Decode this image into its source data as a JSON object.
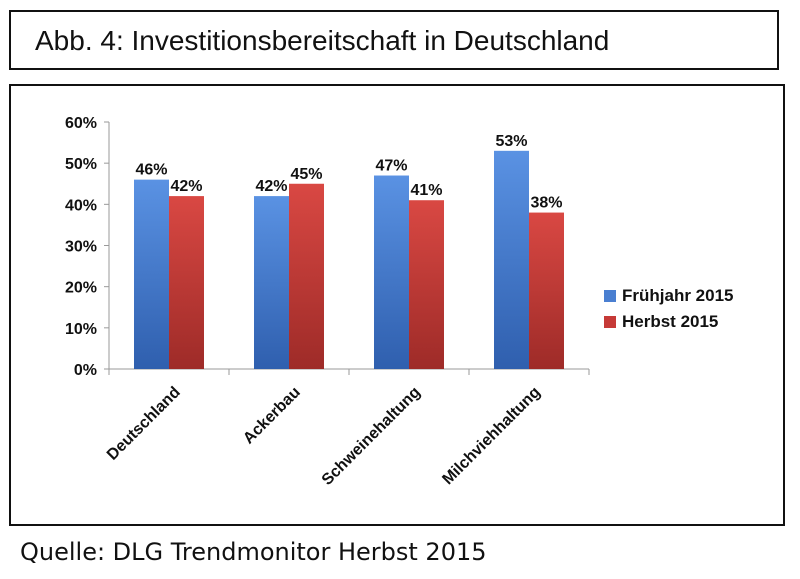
{
  "figure": {
    "title": "Abb. 4: Investitionsbereitschaft in Deutschland",
    "source": "Quelle: DLG Trendmonitor Herbst 2015"
  },
  "colors": {
    "series_blue": "#4a7fd1",
    "series_red": "#c63a37",
    "axis": "#9a9a9a",
    "text": "#111111"
  },
  "chart_data": {
    "type": "bar",
    "categories": [
      "Deutschland",
      "Ackerbau",
      "Schweinehaltung",
      "Milchviehhaltung"
    ],
    "series": [
      {
        "name": "Frühjahr 2015",
        "values": [
          46,
          42,
          47,
          53
        ],
        "labels": [
          "46%",
          "42%",
          "47%",
          "53%"
        ],
        "color": "#4a7fd1"
      },
      {
        "name": "Herbst 2015",
        "values": [
          42,
          45,
          41,
          38
        ],
        "labels": [
          "42%",
          "45%",
          "41%",
          "38%"
        ],
        "color": "#c63a37"
      }
    ],
    "ylim": [
      0,
      60
    ],
    "yticks": [
      "0%",
      "10%",
      "20%",
      "30%",
      "40%",
      "50%",
      "60%"
    ],
    "ytick_values": [
      0,
      10,
      20,
      30,
      40,
      50,
      60
    ],
    "legend_position": "right",
    "grid": false
  }
}
